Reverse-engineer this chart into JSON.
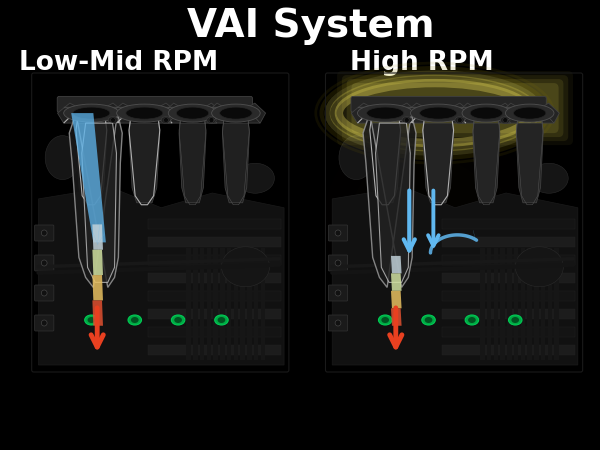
{
  "title": "VAI System",
  "title_fontsize": 28,
  "title_color": "#ffffff",
  "title_fontweight": "bold",
  "subtitle_left": "Low-Mid RPM",
  "subtitle_right": "High RPM",
  "subtitle_fontsize": 19,
  "subtitle_color": "#ffffff",
  "subtitle_fontweight": "bold",
  "background_color": "#000000",
  "glow_yellow": "#d4c84a",
  "glow_yellow_bright": "#f0e060",
  "glow_yellow_outer": "#8a7800",
  "arrow_blue": "#60b8f0",
  "arrow_blue_dark": "#3090d0",
  "arrow_orange": "#e84020",
  "engine_base": "#1e1e1e",
  "engine_mid": "#282828",
  "engine_light": "#383838",
  "engine_bright": "#505050",
  "engine_highlight": "#707070",
  "edge_bright": "#b0b0b0",
  "edge_white": "#e8e8e8",
  "injector_green": "#00aa44",
  "flow_beam_top": "#b8c8d0",
  "flow_beam_mid": "#d0e890",
  "flow_beam_bot": "#e05030"
}
